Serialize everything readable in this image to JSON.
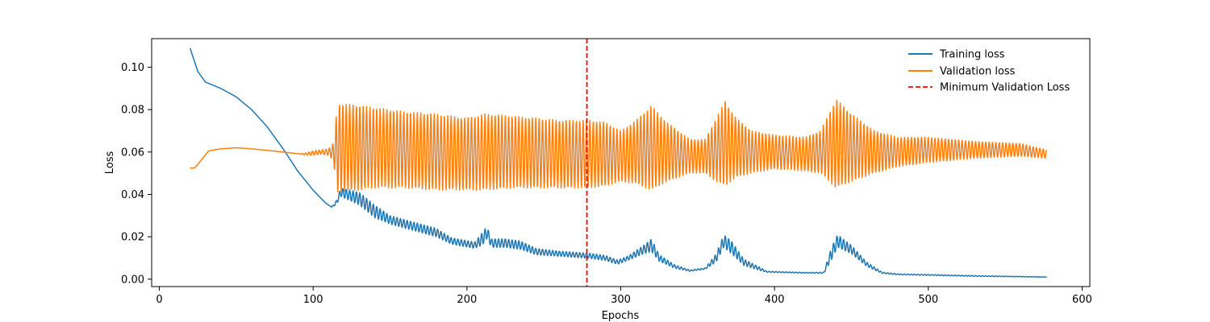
{
  "chart_data": {
    "type": "line",
    "title": "",
    "xlabel": "Epochs",
    "ylabel": "Loss",
    "xlim": [
      -5,
      605
    ],
    "ylim": [
      -0.0035,
      0.1135
    ],
    "xticks": [
      0,
      100,
      200,
      300,
      400,
      500,
      600
    ],
    "yticks": [
      0.0,
      0.02,
      0.04,
      0.06,
      0.08,
      0.1
    ],
    "xtick_labels": [
      "0",
      "100",
      "200",
      "300",
      "400",
      "500",
      "600"
    ],
    "ytick_labels": [
      "0.00",
      "0.02",
      "0.04",
      "0.06",
      "0.08",
      "0.10"
    ],
    "grid": false,
    "legend_position": "top-right",
    "legend": [
      "Training loss",
      "Validation loss",
      "Minimum Validation Loss"
    ],
    "series": [
      {
        "name": "Training loss",
        "color": "#1f77b4",
        "x_start": 20,
        "x_end": 577,
        "envelope": [
          [
            20,
            0.109,
            0
          ],
          [
            25,
            0.098,
            0
          ],
          [
            30,
            0.093,
            0
          ],
          [
            40,
            0.09,
            0
          ],
          [
            50,
            0.086,
            0
          ],
          [
            60,
            0.08,
            0
          ],
          [
            70,
            0.072,
            0
          ],
          [
            80,
            0.062,
            0
          ],
          [
            90,
            0.051,
            0
          ],
          [
            100,
            0.042,
            0
          ],
          [
            108,
            0.036,
            0
          ],
          [
            112,
            0.034,
            0
          ],
          [
            115,
            0.036,
            0.001
          ],
          [
            118,
            0.041,
            0.002
          ],
          [
            130,
            0.038,
            0.003
          ],
          [
            140,
            0.032,
            0.003
          ],
          [
            150,
            0.028,
            0.002
          ],
          [
            160,
            0.026,
            0.002
          ],
          [
            170,
            0.024,
            0.002
          ],
          [
            180,
            0.022,
            0.002
          ],
          [
            190,
            0.018,
            0.0015
          ],
          [
            205,
            0.016,
            0.0015
          ],
          [
            210,
            0.019,
            0.003
          ],
          [
            213,
            0.022,
            0.003
          ],
          [
            216,
            0.017,
            0.002
          ],
          [
            225,
            0.017,
            0.002
          ],
          [
            235,
            0.016,
            0.002
          ],
          [
            245,
            0.013,
            0.0015
          ],
          [
            260,
            0.012,
            0.0012
          ],
          [
            280,
            0.011,
            0.0012
          ],
          [
            290,
            0.01,
            0.0012
          ],
          [
            298,
            0.008,
            0.001
          ],
          [
            305,
            0.01,
            0.001
          ],
          [
            315,
            0.014,
            0.002
          ],
          [
            320,
            0.016,
            0.003
          ],
          [
            325,
            0.01,
            0.0015
          ],
          [
            335,
            0.006,
            0.0008
          ],
          [
            345,
            0.004,
            0.0003
          ],
          [
            355,
            0.005,
            0.0003
          ],
          [
            362,
            0.01,
            0.002
          ],
          [
            367,
            0.018,
            0.003
          ],
          [
            372,
            0.015,
            0.003
          ],
          [
            380,
            0.008,
            0.0015
          ],
          [
            390,
            0.005,
            0.0008
          ],
          [
            395,
            0.0035,
            0.0002
          ],
          [
            420,
            0.003,
            0.0002
          ],
          [
            432,
            0.003,
            0.0003
          ],
          [
            437,
            0.012,
            0.003
          ],
          [
            441,
            0.018,
            0.003
          ],
          [
            450,
            0.014,
            0.002
          ],
          [
            460,
            0.007,
            0.001
          ],
          [
            470,
            0.003,
            0.0003
          ],
          [
            480,
            0.0023,
            0.0002
          ],
          [
            500,
            0.002,
            0.0002
          ],
          [
            530,
            0.0015,
            0.0002
          ],
          [
            560,
            0.0012,
            0.0001
          ],
          [
            577,
            0.001,
            0.0001
          ]
        ],
        "wiggle_period": 2.2
      },
      {
        "name": "Validation loss",
        "color": "#ff7f0e",
        "x_start": 20,
        "x_end": 577,
        "envelope": [
          [
            20,
            0.0525,
            0
          ],
          [
            23,
            0.0525,
            0
          ],
          [
            27,
            0.056,
            0
          ],
          [
            32,
            0.0605,
            0
          ],
          [
            40,
            0.0615,
            0
          ],
          [
            50,
            0.062,
            0
          ],
          [
            60,
            0.0615,
            0
          ],
          [
            70,
            0.0608,
            0
          ],
          [
            80,
            0.06,
            0
          ],
          [
            90,
            0.0592,
            0
          ],
          [
            95,
            0.059,
            0.0005
          ],
          [
            100,
            0.0595,
            0.001
          ],
          [
            105,
            0.06,
            0.001
          ],
          [
            110,
            0.06,
            0.0015
          ],
          [
            113,
            0.06,
            0.004
          ],
          [
            116,
            0.062,
            0.021
          ],
          [
            130,
            0.062,
            0.02
          ],
          [
            140,
            0.062,
            0.019
          ],
          [
            160,
            0.061,
            0.018
          ],
          [
            180,
            0.06,
            0.018
          ],
          [
            200,
            0.059,
            0.017
          ],
          [
            212,
            0.06,
            0.018
          ],
          [
            230,
            0.06,
            0.017
          ],
          [
            260,
            0.059,
            0.016
          ],
          [
            280,
            0.059,
            0.016
          ],
          [
            290,
            0.059,
            0.015
          ],
          [
            300,
            0.058,
            0.012
          ],
          [
            310,
            0.06,
            0.015
          ],
          [
            320,
            0.062,
            0.02
          ],
          [
            330,
            0.06,
            0.014
          ],
          [
            345,
            0.058,
            0.008
          ],
          [
            355,
            0.058,
            0.008
          ],
          [
            362,
            0.061,
            0.015
          ],
          [
            368,
            0.064,
            0.02
          ],
          [
            375,
            0.062,
            0.014
          ],
          [
            385,
            0.06,
            0.01
          ],
          [
            400,
            0.06,
            0.008
          ],
          [
            420,
            0.059,
            0.008
          ],
          [
            430,
            0.06,
            0.01
          ],
          [
            440,
            0.064,
            0.021
          ],
          [
            450,
            0.062,
            0.016
          ],
          [
            465,
            0.06,
            0.01
          ],
          [
            480,
            0.06,
            0.007
          ],
          [
            500,
            0.061,
            0.006
          ],
          [
            530,
            0.061,
            0.004
          ],
          [
            560,
            0.061,
            0.003
          ],
          [
            577,
            0.059,
            0.002
          ]
        ],
        "wiggle_period": 2.2
      }
    ],
    "vline": {
      "name": "Minimum Validation Loss",
      "x": 278,
      "color": "#ff0000"
    }
  }
}
